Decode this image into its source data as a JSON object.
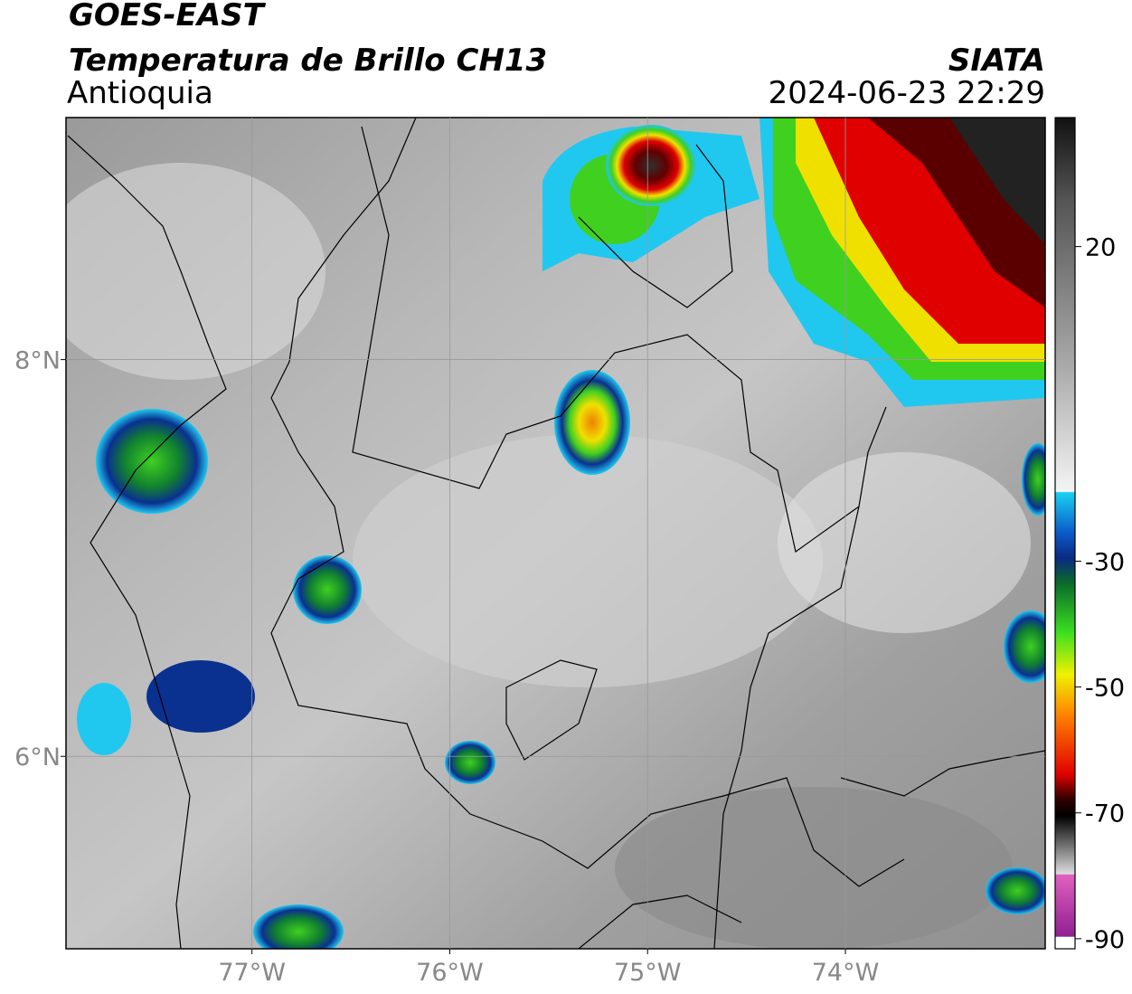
{
  "header": {
    "title": "GOES-EAST",
    "subtitle": "Temperatura de Brillo CH13",
    "region": "Antioquia",
    "source": "SIATA",
    "datetime": "2024-06-23 22:29"
  },
  "map": {
    "xlim": [
      -77.94,
      -72.99
    ],
    "ylim": [
      5.03,
      9.22
    ],
    "xticks": [
      {
        "value": -77,
        "label": "77°W"
      },
      {
        "value": -76,
        "label": "76°W"
      },
      {
        "value": -75,
        "label": "75°W"
      },
      {
        "value": -74,
        "label": "74°W"
      }
    ],
    "yticks": [
      {
        "value": 8,
        "label": "8°N"
      },
      {
        "value": 6,
        "label": "6°N"
      }
    ],
    "grid": true
  },
  "colorbar": {
    "lim": [
      -91.6,
      40.5
    ],
    "ticks": [
      20,
      -30,
      -50,
      -70,
      -90
    ]
  }
}
